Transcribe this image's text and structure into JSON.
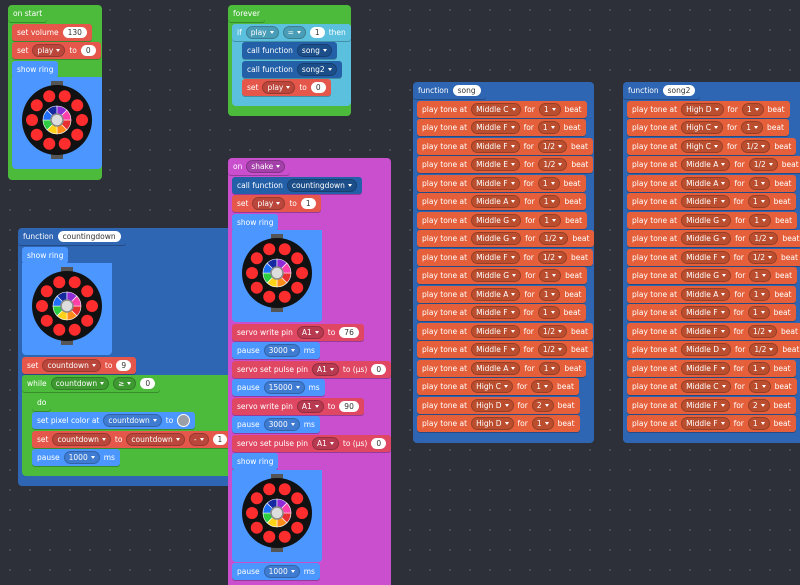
{
  "workspace": {
    "groups": [
      {
        "lines": [
          [
            "on start"
          ],
          [
            "set volume",
            "130"
          ],
          [
            "set",
            "play",
            "to",
            "0"
          ],
          [
            "show ring"
          ]
        ]
      },
      {
        "lines": [
          [
            "forever"
          ],
          [
            "if",
            "play",
            "=",
            "1",
            "then"
          ],
          [
            "call function",
            "song"
          ],
          [
            "call function",
            "song2"
          ],
          [
            "set",
            "play",
            "to",
            "0"
          ]
        ]
      },
      {
        "lines": [
          [
            "function",
            "countingdown"
          ],
          [
            "show ring"
          ],
          [
            "set",
            "countdown",
            "to",
            "9"
          ],
          [
            "while",
            "countdown",
            "≥",
            "0"
          ],
          [
            "do"
          ],
          [
            "set pixel color at",
            "countdown",
            "to"
          ],
          [
            "set",
            "countdown",
            "to",
            "countdown",
            "-",
            "1"
          ],
          [
            "pause",
            "1000",
            "ms"
          ]
        ]
      },
      {
        "lines": [
          [
            "on",
            "shake"
          ],
          [
            "call function",
            "countingdown"
          ],
          [
            "set",
            "play",
            "to",
            "1"
          ],
          [
            "show ring"
          ],
          [
            "servo write pin",
            "A1",
            "to",
            "76"
          ],
          [
            "pause",
            "3000",
            "ms"
          ],
          [
            "servo set pulse pin",
            "A1",
            "to (µs)",
            "0"
          ],
          [
            "pause",
            "15000",
            "ms"
          ],
          [
            "servo write pin",
            "A1",
            "to",
            "90"
          ],
          [
            "pause",
            "3000",
            "ms"
          ],
          [
            "servo set pulse pin",
            "A1",
            "to (µs)",
            "0"
          ],
          [
            "show ring"
          ],
          [
            "pause",
            "1000",
            "ms"
          ]
        ]
      },
      {
        "lines": [
          [
            "function",
            "song"
          ],
          [
            "play tone at",
            "Middle C",
            "for",
            "1",
            "beat"
          ],
          [
            "play tone at",
            "Middle F",
            "for",
            "1",
            "beat"
          ],
          [
            "play tone at",
            "Middle F",
            "for",
            "1/2",
            "beat"
          ],
          [
            "play tone at",
            "Middle E",
            "for",
            "1/2",
            "beat"
          ],
          [
            "play tone at",
            "Middle F",
            "for",
            "1",
            "beat"
          ],
          [
            "play tone at",
            "Middle A",
            "for",
            "1",
            "beat"
          ],
          [
            "play tone at",
            "Middle G",
            "for",
            "1",
            "beat"
          ],
          [
            "play tone at",
            "Middle G",
            "for",
            "1/2",
            "beat"
          ],
          [
            "play tone at",
            "Middle F",
            "for",
            "1/2",
            "beat"
          ],
          [
            "play tone at",
            "Middle G",
            "for",
            "1",
            "beat"
          ],
          [
            "play tone at",
            "Middle A",
            "for",
            "1",
            "beat"
          ],
          [
            "play tone at",
            "Middle F",
            "for",
            "1",
            "beat"
          ],
          [
            "play tone at",
            "Middle F",
            "for",
            "1/2",
            "beat"
          ],
          [
            "play tone at",
            "Middle F",
            "for",
            "1/2",
            "beat"
          ],
          [
            "play tone at",
            "Middle A",
            "for",
            "1",
            "beat"
          ],
          [
            "play tone at",
            "High C",
            "for",
            "1",
            "beat"
          ],
          [
            "play tone at",
            "High D",
            "for",
            "2",
            "beat"
          ],
          [
            "play tone at",
            "High D",
            "for",
            "1",
            "beat"
          ]
        ]
      },
      {
        "lines": [
          [
            "function",
            "song2"
          ],
          [
            "play tone at",
            "High D",
            "for",
            "1",
            "beat"
          ],
          [
            "play tone at",
            "High C",
            "for",
            "1",
            "beat"
          ],
          [
            "play tone at",
            "High C",
            "for",
            "1/2",
            "beat"
          ],
          [
            "play tone at",
            "Middle A",
            "for",
            "1/2",
            "beat"
          ],
          [
            "play tone at",
            "Middle A",
            "for",
            "1",
            "beat"
          ],
          [
            "play tone at",
            "Middle F",
            "for",
            "1",
            "beat"
          ],
          [
            "play tone at",
            "Middle G",
            "for",
            "1",
            "beat"
          ],
          [
            "play tone at",
            "Middle G",
            "for",
            "1/2",
            "beat"
          ],
          [
            "play tone at",
            "Middle F",
            "for",
            "1/2",
            "beat"
          ],
          [
            "play tone at",
            "Middle G",
            "for",
            "1",
            "beat"
          ],
          [
            "play tone at",
            "Middle A",
            "for",
            "1",
            "beat"
          ],
          [
            "play tone at",
            "Middle F",
            "for",
            "1",
            "beat"
          ],
          [
            "play tone at",
            "Middle F",
            "for",
            "1/2",
            "beat"
          ],
          [
            "play tone at",
            "Middle D",
            "for",
            "1/2",
            "beat"
          ],
          [
            "play tone at",
            "Middle F",
            "for",
            "1",
            "beat"
          ],
          [
            "play tone at",
            "Middle C",
            "for",
            "1",
            "beat"
          ],
          [
            "play tone at",
            "Middle F",
            "for",
            "2",
            "beat"
          ],
          [
            "play tone at",
            "Middle F",
            "for",
            "1",
            "beat"
          ]
        ]
      }
    ]
  }
}
